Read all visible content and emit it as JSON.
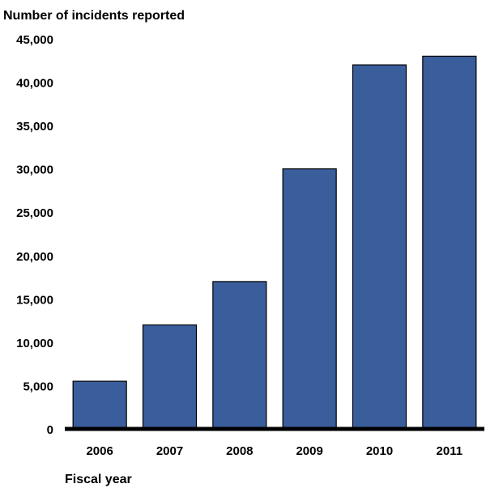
{
  "colors": {
    "bar": "#3A5E9C",
    "bar_edge": "#000000",
    "axis": "#000000"
  },
  "chart_data": {
    "type": "bar",
    "ylabel": "Number of incidents reported",
    "xlabel": "Fiscal year",
    "categories": [
      "2006",
      "2007",
      "2008",
      "2009",
      "2010",
      "2011"
    ],
    "values": [
      5500,
      12000,
      17000,
      30000,
      42000,
      43000
    ],
    "ylim": [
      0,
      45000
    ],
    "yticks": [
      0,
      5000,
      10000,
      15000,
      20000,
      25000,
      30000,
      35000,
      40000,
      45000
    ],
    "ytick_labels": [
      "0",
      "5,000",
      "10,000",
      "15,000",
      "20,000",
      "25,000",
      "30,000",
      "35,000",
      "40,000",
      "45,000"
    ],
    "grid": false,
    "legend": "none"
  }
}
